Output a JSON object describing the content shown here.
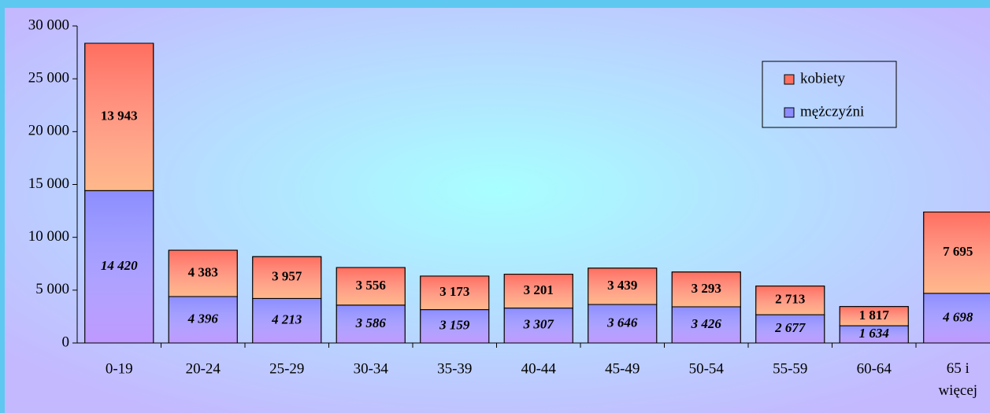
{
  "chart_data": {
    "type": "stacked_bar",
    "categories": [
      "0-19",
      "20-24",
      "25-29",
      "30-34",
      "35-39",
      "40-44",
      "45-49",
      "50-54",
      "55-59",
      "60-64",
      "65 i więcej"
    ],
    "series": [
      {
        "name": "mężczyźni",
        "color": "#8c8cff",
        "values": [
          14420,
          4396,
          4213,
          3586,
          3159,
          3307,
          3646,
          3426,
          2677,
          1634,
          4698
        ],
        "value_labels": [
          "14 420",
          "4 396",
          "4 213",
          "3 586",
          "3 159",
          "3 307",
          "3 646",
          "3 426",
          "2 677",
          "1 634",
          "4 698"
        ]
      },
      {
        "name": "kobiety",
        "color": "#ff6e5e",
        "values": [
          13943,
          4383,
          3957,
          3556,
          3173,
          3201,
          3439,
          3293,
          2713,
          1817,
          7695
        ],
        "value_labels": [
          "13 943",
          "4 383",
          "3 957",
          "3 556",
          "3 173",
          "3 201",
          "3 439",
          "3 293",
          "2 713",
          "1 817",
          "7 695"
        ]
      }
    ],
    "ylim": [
      0,
      30000
    ],
    "yticks": [
      0,
      {
        "value": 5000,
        "label": "5 000"
      },
      {
        "value": 10000,
        "label": "10 000"
      },
      {
        "value": 15000,
        "label": "15 000"
      },
      {
        "value": 20000,
        "label": "20 000"
      },
      {
        "value": 25000,
        "label": "25 000"
      },
      {
        "value": 30000,
        "label": "30 000"
      }
    ],
    "legend": "upper right"
  }
}
